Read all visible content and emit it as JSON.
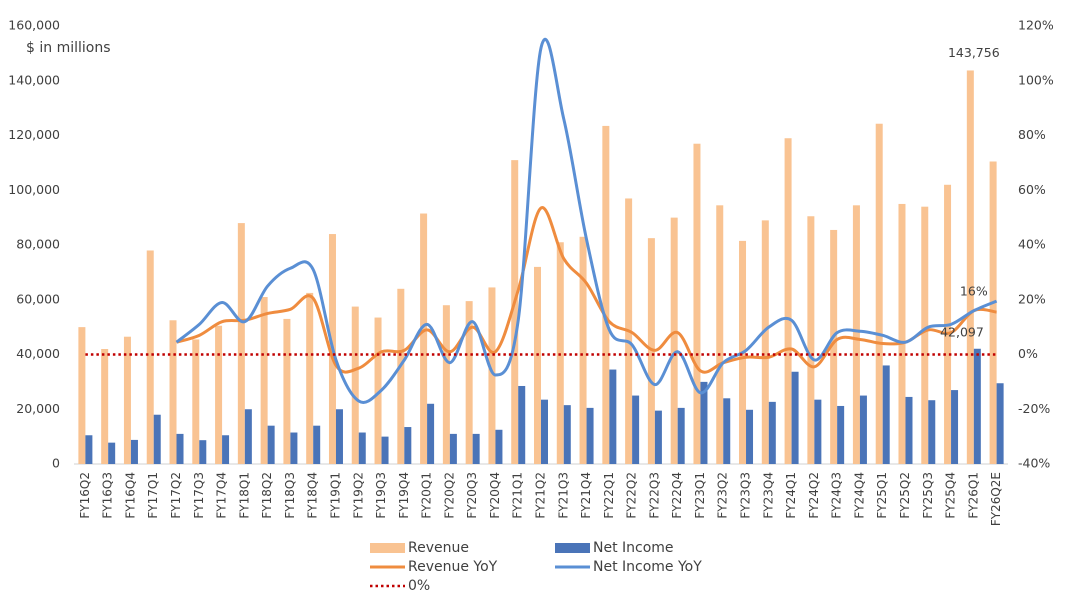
{
  "chart_data": {
    "type": "bar",
    "subtitle": "$ in millions",
    "categories": [
      "FY16Q2",
      "FY16Q3",
      "FY16Q4",
      "FY17Q1",
      "FY17Q2",
      "FY17Q3",
      "FY17Q4",
      "FY18Q1",
      "FY18Q2",
      "FY18Q3",
      "FY18Q4",
      "FY19Q1",
      "FY19Q2",
      "FY19Q3",
      "FY19Q4",
      "FY20Q1",
      "FY20Q2",
      "FY20Q3",
      "FY20Q4",
      "FY21Q1",
      "FY21Q2",
      "FY21Q3",
      "FY21Q4",
      "FY22Q1",
      "FY22Q2",
      "FY22Q3",
      "FY22Q4",
      "FY23Q1",
      "FY23Q2",
      "FY23Q3",
      "FY23Q4",
      "FY24Q1",
      "FY24Q2",
      "FY24Q3",
      "FY24Q4",
      "FY25Q1",
      "FY25Q2",
      "FY25Q3",
      "FY25Q4",
      "FY26Q1",
      "FY26Q2E"
    ],
    "series": [
      {
        "name": "Revenue",
        "type": "bar",
        "color": "#f9c392",
        "values": [
          50000,
          42000,
          46500,
          78000,
          52500,
          45500,
          50500,
          88000,
          61000,
          53000,
          62500,
          84000,
          57500,
          53500,
          64000,
          91500,
          58000,
          59500,
          64500,
          111000,
          72000,
          81000,
          83000,
          123500,
          97000,
          82500,
          90000,
          117000,
          94500,
          81500,
          89000,
          119000,
          90500,
          85500,
          94500,
          124300,
          95000,
          94000,
          102000,
          143756,
          110500
        ],
        "value_labels": [
          null,
          null,
          null,
          null,
          null,
          null,
          null,
          null,
          null,
          null,
          null,
          null,
          null,
          null,
          null,
          null,
          null,
          null,
          null,
          null,
          null,
          null,
          null,
          null,
          null,
          null,
          null,
          null,
          null,
          null,
          null,
          null,
          null,
          null,
          null,
          null,
          null,
          null,
          null,
          "143,756",
          null
        ]
      },
      {
        "name": "Net Income",
        "type": "bar",
        "color": "#4a74b8",
        "values": [
          10500,
          7800,
          8800,
          18000,
          11000,
          8700,
          10500,
          20000,
          14000,
          11500,
          14000,
          20000,
          11500,
          10000,
          13500,
          22000,
          11000,
          11000,
          12500,
          28500,
          23500,
          21500,
          20500,
          34500,
          25000,
          19500,
          20500,
          30000,
          24000,
          19800,
          22700,
          33700,
          23500,
          21200,
          25000,
          36000,
          24500,
          23300,
          27000,
          42097,
          29500
        ],
        "value_labels": [
          null,
          null,
          null,
          null,
          null,
          null,
          null,
          null,
          null,
          null,
          null,
          null,
          null,
          null,
          null,
          null,
          null,
          null,
          null,
          null,
          null,
          null,
          null,
          null,
          null,
          null,
          null,
          null,
          null,
          null,
          null,
          null,
          null,
          null,
          null,
          null,
          null,
          null,
          null,
          "42,097",
          null
        ]
      },
      {
        "name": "Revenue YoY",
        "type": "line",
        "axis": "y2",
        "color": "#ef8c3f",
        "values": [
          null,
          null,
          null,
          null,
          4.5,
          7,
          12,
          12.5,
          15,
          16.5,
          20.5,
          -4,
          -5,
          1,
          1.5,
          9,
          1,
          10,
          1,
          23.5,
          53.5,
          35,
          26,
          12,
          8,
          1.5,
          8,
          -6,
          -3,
          -1,
          -1,
          2,
          -4.5,
          5.5,
          5.5,
          4,
          4.5,
          9,
          8,
          16,
          15.5
        ],
        "value_labels": [
          null,
          null,
          null,
          null,
          null,
          null,
          null,
          null,
          null,
          null,
          null,
          null,
          null,
          null,
          null,
          null,
          null,
          null,
          null,
          null,
          null,
          null,
          null,
          null,
          null,
          null,
          null,
          null,
          null,
          null,
          null,
          null,
          null,
          null,
          null,
          null,
          null,
          null,
          null,
          "16%",
          null
        ]
      },
      {
        "name": "Net Income YoY",
        "type": "line",
        "axis": "y2",
        "color": "#5a8fd4",
        "values": [
          null,
          null,
          null,
          null,
          4.5,
          11,
          19,
          12,
          25,
          31.5,
          31,
          -2,
          -17,
          -13,
          -2,
          11,
          -3,
          12,
          -7.5,
          12.5,
          112,
          86,
          42,
          9,
          3.5,
          -11,
          1,
          -14,
          -3,
          1.5,
          10,
          12.5,
          -2,
          8,
          8.5,
          7,
          4.5,
          10,
          11,
          16,
          19.5
        ]
      },
      {
        "name": "0%",
        "type": "line",
        "style": "dotted",
        "axis": "y2",
        "color": "#c00000",
        "values": [
          0,
          0,
          0,
          0,
          0,
          0,
          0,
          0,
          0,
          0,
          0,
          0,
          0,
          0,
          0,
          0,
          0,
          0,
          0,
          0,
          0,
          0,
          0,
          0,
          0,
          0,
          0,
          0,
          0,
          0,
          0,
          0,
          0,
          0,
          0,
          0,
          0,
          0,
          0,
          0,
          0
        ]
      }
    ],
    "ylim": [
      0,
      160000
    ],
    "yticks": [
      0,
      {
        "value": 20000,
        "label": "20,000"
      },
      {
        "value": 40000,
        "label": "40,000"
      },
      {
        "value": 60000,
        "label": "60,000"
      },
      {
        "value": 80000,
        "label": "80,000"
      },
      {
        "value": 100000,
        "label": "100,000"
      },
      {
        "value": 120000,
        "label": "120,000"
      },
      {
        "value": 140000,
        "label": "140,000"
      },
      {
        "value": 160000,
        "label": "160,000"
      }
    ],
    "y2lim": [
      -40,
      120
    ],
    "y2ticks": [
      {
        "value": -40,
        "label": "-40%"
      },
      {
        "value": -20,
        "label": "-20%"
      },
      {
        "value": 0,
        "label": "0%"
      },
      {
        "value": 20,
        "label": "20%"
      },
      {
        "value": 40,
        "label": "40%"
      },
      {
        "value": 60,
        "label": "60%"
      },
      {
        "value": 80,
        "label": "80%"
      },
      {
        "value": 100,
        "label": "100%"
      },
      {
        "value": 120,
        "label": "120%"
      }
    ],
    "grid": false,
    "legend": "bottom"
  }
}
